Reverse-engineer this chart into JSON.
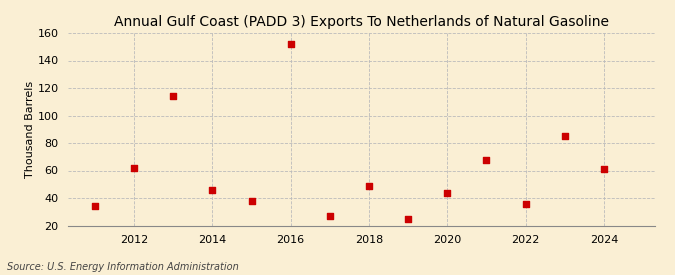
{
  "title": "Annual Gulf Coast (PADD 3) Exports To Netherlands of Natural Gasoline",
  "ylabel": "Thousand Barrels",
  "source": "Source: U.S. Energy Information Administration",
  "background_color": "#faefd4",
  "x_data": [
    2011,
    2012,
    2013,
    2014,
    2015,
    2016,
    2017,
    2018,
    2019,
    2020,
    2021,
    2022,
    2023,
    2024
  ],
  "y_data": [
    34,
    62,
    114,
    46,
    38,
    152,
    27,
    49,
    25,
    44,
    68,
    36,
    85,
    61
  ],
  "marker_color": "#cc0000",
  "marker": "s",
  "marker_size": 4,
  "xlim": [
    2010.3,
    2025.3
  ],
  "ylim": [
    20,
    160
  ],
  "yticks": [
    20,
    40,
    60,
    80,
    100,
    120,
    140,
    160
  ],
  "xticks": [
    2012,
    2014,
    2016,
    2018,
    2020,
    2022,
    2024
  ],
  "grid_color": "#bbbbbb",
  "title_fontsize": 10,
  "axis_fontsize": 8,
  "tick_fontsize": 8,
  "source_fontsize": 7
}
